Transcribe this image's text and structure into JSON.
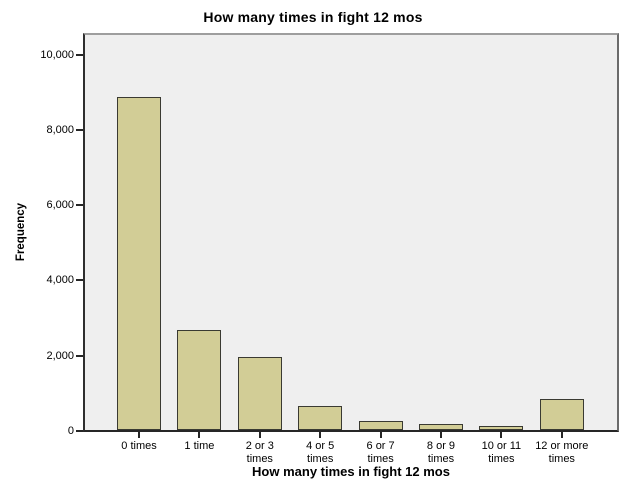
{
  "chart_data": {
    "type": "bar",
    "title": "How many times in fight 12 mos",
    "xlabel": "How many times in fight 12 mos",
    "ylabel": "Frequency",
    "categories": [
      "0 times",
      "1 time",
      "2 or 3\ntimes",
      "4 or 5\ntimes",
      "6 or 7\ntimes",
      "8 or 9\ntimes",
      "10 or 11\ntimes",
      "12 or more\ntimes"
    ],
    "values": [
      8850,
      2670,
      1930,
      650,
      250,
      150,
      110,
      820
    ],
    "ylim": [
      0,
      10550
    ],
    "yticks": [
      {
        "value": 0,
        "label": "0"
      },
      {
        "value": 2000,
        "label": "2,000"
      },
      {
        "value": 4000,
        "label": "4,000"
      },
      {
        "value": 6000,
        "label": "6,000"
      },
      {
        "value": 8000,
        "label": "8,000"
      },
      {
        "value": 10000,
        "label": "10,000"
      }
    ],
    "grid": false,
    "legend": null,
    "colors": {
      "bar_fill": "#d2cd96",
      "bar_border": "#3a3a32",
      "plot_background": "#efefef",
      "axis_line": "#262626",
      "page_background": "#ffffff"
    }
  }
}
